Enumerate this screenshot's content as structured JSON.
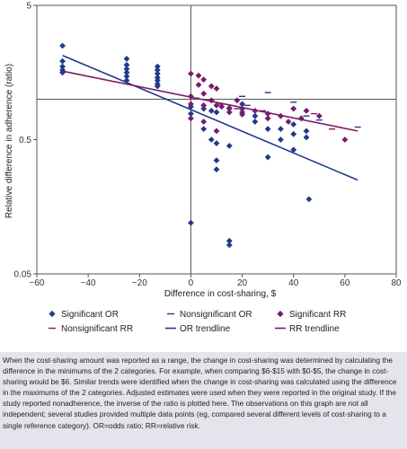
{
  "chart_data": {
    "type": "scatter",
    "xlabel": "Difference in cost-sharing, $",
    "ylabel": "Relative difference in adherence (ratio)",
    "x_ticks": [
      -60,
      -40,
      -20,
      0,
      20,
      40,
      60,
      80
    ],
    "y_ticks": [
      5,
      0.5,
      0.05
    ],
    "xlim": [
      -60,
      80
    ],
    "ylim": [
      0.05,
      5
    ],
    "y_scale": "log",
    "reference_lines": {
      "x": 0,
      "y": 1
    },
    "legend": {
      "placement": "bottom",
      "entries": [
        {
          "key": "sig_or",
          "label": "Significant OR",
          "marker": "diamond",
          "color": "#1f3a8a"
        },
        {
          "key": "nonsig_or",
          "label": "Nonsignificant OR",
          "marker": "dash",
          "color": "#1f3a8a"
        },
        {
          "key": "sig_rr",
          "label": "Significant RR",
          "marker": "diamond",
          "color": "#7a1a6e"
        },
        {
          "key": "nonsig_rr",
          "label": "Nonsignificant RR",
          "marker": "dash",
          "color": "#7a1a6e"
        },
        {
          "key": "or_trend",
          "label": "OR trendline",
          "marker": "line",
          "color": "#1f3a8a"
        },
        {
          "key": "rr_trend",
          "label": "RR trendline",
          "marker": "line",
          "color": "#7a1a6e"
        }
      ]
    },
    "series": [
      {
        "key": "sig_or",
        "color": "#1f3a8a",
        "marker": "diamond",
        "points": [
          [
            -50,
            2.5
          ],
          [
            -50,
            1.92
          ],
          [
            -50,
            1.75
          ],
          [
            -50,
            1.65
          ],
          [
            -50,
            1.58
          ],
          [
            -25,
            2.0
          ],
          [
            -25,
            1.8
          ],
          [
            -25,
            1.68
          ],
          [
            -25,
            1.58
          ],
          [
            -25,
            1.48
          ],
          [
            -25,
            1.38
          ],
          [
            -13,
            1.75
          ],
          [
            -13,
            1.65
          ],
          [
            -13,
            1.55
          ],
          [
            -13,
            1.45
          ],
          [
            -13,
            1.38
          ],
          [
            -13,
            1.3
          ],
          [
            -13,
            1.25
          ],
          [
            0,
            0.88
          ],
          [
            0,
            0.78
          ],
          [
            0,
            0.12
          ],
          [
            5,
            0.85
          ],
          [
            5,
            0.6
          ],
          [
            8,
            0.82
          ],
          [
            8,
            0.5
          ],
          [
            10,
            0.8
          ],
          [
            10,
            0.47
          ],
          [
            10,
            0.35
          ],
          [
            10,
            0.3
          ],
          [
            15,
            0.86
          ],
          [
            15,
            0.45
          ],
          [
            15,
            0.088
          ],
          [
            15,
            0.082
          ],
          [
            20,
            0.92
          ],
          [
            20,
            0.8
          ],
          [
            25,
            0.75
          ],
          [
            25,
            0.68
          ],
          [
            30,
            0.6
          ],
          [
            30,
            0.37
          ],
          [
            35,
            0.6
          ],
          [
            35,
            0.5
          ],
          [
            40,
            0.65
          ],
          [
            40,
            0.55
          ],
          [
            40,
            0.42
          ],
          [
            45,
            0.58
          ],
          [
            45,
            0.52
          ],
          [
            46,
            0.18
          ]
        ]
      },
      {
        "key": "nonsig_or",
        "color": "#1f3a8a",
        "marker": "dash",
        "points": [
          [
            20,
            1.05
          ],
          [
            30,
            1.12
          ],
          [
            40,
            0.95
          ],
          [
            45,
            0.75
          ],
          [
            50,
            0.7
          ],
          [
            65,
            0.62
          ]
        ]
      },
      {
        "key": "sig_rr",
        "color": "#7a1a6e",
        "marker": "diamond",
        "points": [
          [
            0,
            1.55
          ],
          [
            0,
            1.05
          ],
          [
            0,
            0.92
          ],
          [
            0,
            0.72
          ],
          [
            3,
            1.5
          ],
          [
            3,
            1.28
          ],
          [
            5,
            1.4
          ],
          [
            5,
            1.1
          ],
          [
            5,
            0.9
          ],
          [
            5,
            0.68
          ],
          [
            8,
            1.25
          ],
          [
            8,
            0.98
          ],
          [
            10,
            1.2
          ],
          [
            10,
            0.9
          ],
          [
            10,
            0.58
          ],
          [
            12,
            0.88
          ],
          [
            15,
            0.85
          ],
          [
            15,
            0.8
          ],
          [
            18,
            0.98
          ],
          [
            20,
            0.85
          ],
          [
            20,
            0.77
          ],
          [
            25,
            0.82
          ],
          [
            30,
            0.78
          ],
          [
            30,
            0.72
          ],
          [
            35,
            0.75
          ],
          [
            38,
            0.68
          ],
          [
            40,
            0.85
          ],
          [
            43,
            0.72
          ],
          [
            45,
            0.82
          ],
          [
            50,
            0.75
          ],
          [
            60,
            0.5
          ]
        ]
      },
      {
        "key": "nonsig_rr",
        "color": "#7a1a6e",
        "marker": "dash",
        "points": [
          [
            2,
            1.02
          ],
          [
            12,
            0.92
          ],
          [
            18,
            0.85
          ],
          [
            22,
            0.9
          ],
          [
            28,
            0.82
          ],
          [
            48,
            0.78
          ],
          [
            55,
            0.6
          ]
        ]
      },
      {
        "key": "or_trend",
        "color": "#1f3a8a",
        "marker": "line",
        "points": [
          [
            -50,
            2.12
          ],
          [
            65,
            0.25
          ]
        ]
      },
      {
        "key": "rr_trend",
        "color": "#7a1a6e",
        "marker": "line",
        "points": [
          [
            -50,
            1.62
          ],
          [
            65,
            0.58
          ]
        ]
      }
    ]
  },
  "caption": "When the cost-sharing amount was reported as a range, the change in cost-sharing was determined by calculating the difference in the minimums of the 2 categories. For example, when comparing $6-$15 with $0-$5, the change in cost-sharing would be $6. Similar trends were identified when the change in cost-sharing was calculated using the difference in the maximums of the 2 categories. Adjusted estimates were used when they were reported in the original study. If the study reported nonadherence, the inverse of the ratio is plotted here. The observations on this graph are not all independent; several studies provided multiple data points (eg, compared several different levels of cost-sharing to a single reference category). OR=odds ratio; RR=relative risk."
}
